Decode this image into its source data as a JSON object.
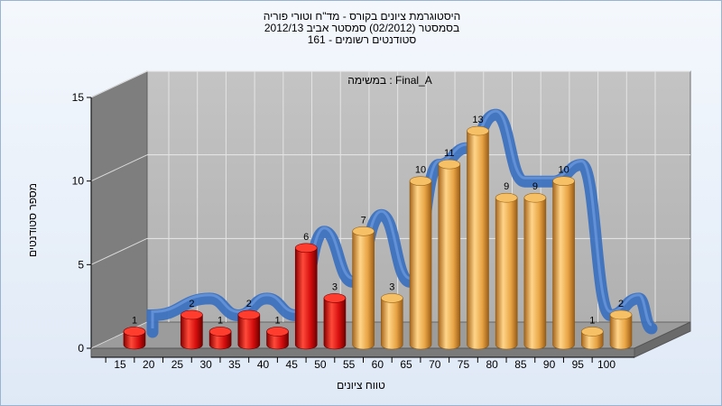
{
  "title_lines": [
    "היסטוגרמת ציונים בקורס - מד\"ח וטורי פוריה",
    "בסמסטר  (02/2012)  סמסטר אביב 2012/13",
    "סטודנטים רשומים - 161"
  ],
  "chart_data": {
    "type": "bar",
    "annotation": "במשימה : Final_A",
    "xlabel": "טווח ציונים",
    "ylabel": "מספר סטודנטים",
    "ylim": [
      0,
      15
    ],
    "yticks": [
      0,
      5,
      10,
      15
    ],
    "x_ticks": [
      15,
      20,
      25,
      30,
      35,
      40,
      45,
      50,
      55,
      60,
      65,
      70,
      75,
      80,
      85,
      90,
      95,
      100
    ],
    "categories": [
      15,
      25,
      30,
      35,
      40,
      45,
      50,
      55,
      60,
      65,
      70,
      75,
      80,
      85,
      90,
      95,
      100
    ],
    "values": [
      1,
      2,
      1,
      2,
      1,
      6,
      3,
      7,
      3,
      10,
      11,
      13,
      9,
      9,
      10,
      1,
      2
    ],
    "colors": {
      "fail": "#e02020",
      "pass": "#f0b050",
      "trend": "#3a70c0"
    },
    "fail_threshold": 55,
    "grid": true,
    "legend": "none"
  }
}
